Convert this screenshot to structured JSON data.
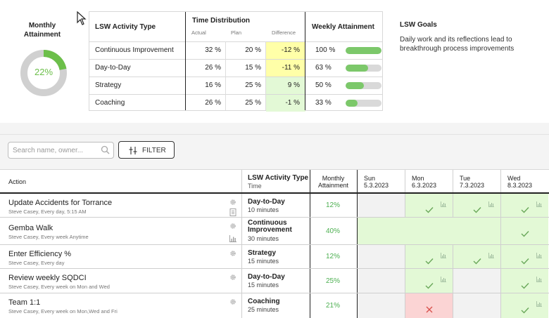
{
  "monthly_attainment": {
    "title_line1": "Monthly",
    "title_line2": "Attainment",
    "percent_label": "22%",
    "value": 0.22,
    "color": "#6cbf4a",
    "track": "#d0d0d0"
  },
  "lsw_table": {
    "headers": {
      "type": "LSW Activity Type",
      "time_distribution": "Time Distribution",
      "actual": "Actual",
      "plan": "Plan",
      "difference": "Difference",
      "weekly": "Weekly Attainment"
    },
    "rows": [
      {
        "type": "Continuous Improvement",
        "actual": "32 %",
        "plan": "20 %",
        "diff": "-12 %",
        "diff_color": "#ffffa8",
        "weekly": "100 %",
        "weekly_value": 1.0
      },
      {
        "type": "Day-to-Day",
        "actual": "26 %",
        "plan": "15 %",
        "diff": "-11 %",
        "diff_color": "#ffffa8",
        "weekly": "63 %",
        "weekly_value": 0.63
      },
      {
        "type": "Strategy",
        "actual": "16 %",
        "plan": "25 %",
        "diff": "9 %",
        "diff_color": "#e3f9d6",
        "weekly": "50 %",
        "weekly_value": 0.5
      },
      {
        "type": "Coaching",
        "actual": "26 %",
        "plan": "25 %",
        "diff": "-1 %",
        "diff_color": "#e3f9d6",
        "weekly": "33 %",
        "weekly_value": 0.33
      }
    ]
  },
  "goals": {
    "title": "LSW Goals",
    "text": "Daily work and its reflections lead to breakthrough process improvements"
  },
  "toolbar": {
    "search_placeholder": "Search name, owner...",
    "filter_label": "FILTER"
  },
  "grid": {
    "headers": {
      "action": "Action",
      "type": "LSW Activity Type",
      "time": "Time",
      "monthly_line1": "Monthly",
      "monthly_line2": "Attainment"
    },
    "days": [
      {
        "name": "Sun",
        "date": "5.3.2023"
      },
      {
        "name": "Mon",
        "date": "6.3.2023"
      },
      {
        "name": "Tue",
        "date": "7.3.2023"
      },
      {
        "name": "Wed",
        "date": "8.3.2023"
      }
    ],
    "rows": [
      {
        "title": "Update Accidents for Torrance",
        "subtitle": "Steve Casey, Every day, 5:15 AM",
        "type_line1": "Day-to-Day",
        "type_line2": "",
        "time": "10 minutes",
        "attainment": "12%",
        "aux": "doc",
        "days": [
          "na",
          "ok",
          "ok",
          "ok"
        ]
      },
      {
        "title": "Gemba Walk",
        "subtitle": "Steve Casey, Every week Anytime",
        "type_line1": "Continuous",
        "type_line2": "Improvement",
        "time": "30 minutes",
        "attainment": "40%",
        "aux": "chart",
        "days": [
          "okspan",
          "okspan",
          "okspan",
          "ok"
        ]
      },
      {
        "title": "Enter Efficiency %",
        "subtitle": "Steve Casey, Every day",
        "type_line1": "Strategy",
        "type_line2": "",
        "time": "15 minutes",
        "attainment": "12%",
        "aux": "",
        "days": [
          "na",
          "ok",
          "ok",
          "ok"
        ]
      },
      {
        "title": "Review weekly SQDCI",
        "subtitle": "Steve Casey, Every week on Mon and Wed",
        "type_line1": "Day-to-Day",
        "type_line2": "",
        "time": "15 minutes",
        "attainment": "25%",
        "aux": "",
        "days": [
          "na",
          "ok",
          "na",
          "ok"
        ]
      },
      {
        "title": "Team 1:1",
        "subtitle": "Steve Casey, Every week on Mon,Wed and Fri",
        "type_line1": "Coaching",
        "type_line2": "",
        "time": "25 minutes",
        "attainment": "21%",
        "aux": "",
        "days": [
          "na",
          "miss",
          "na",
          "ok"
        ]
      }
    ]
  }
}
